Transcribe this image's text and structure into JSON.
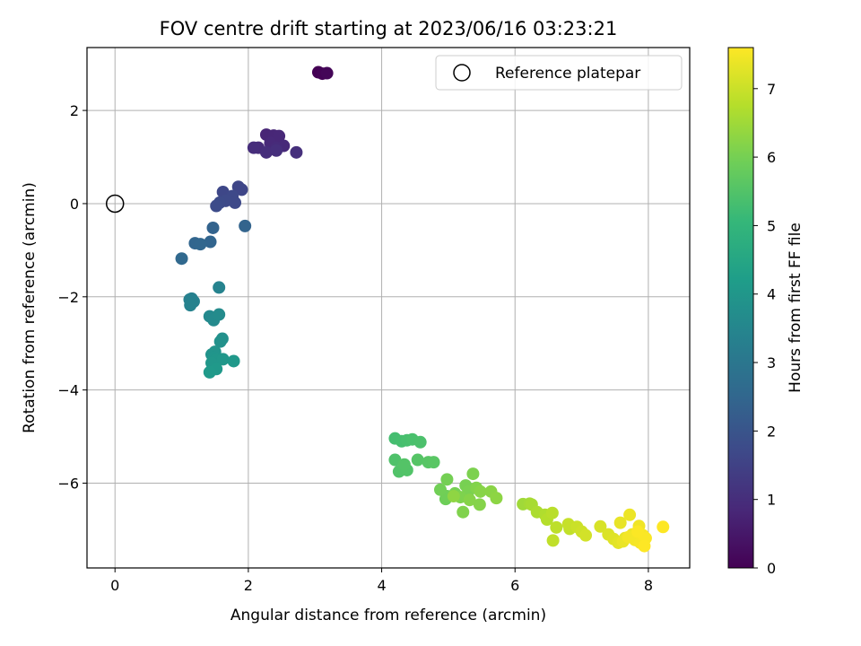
{
  "chart_data": {
    "type": "scatter",
    "title": "FOV centre drift starting at 2023/06/16 03:23:21",
    "xlabel": "Angular distance from reference (arcmin)",
    "ylabel": "Rotation from reference (arcmin)",
    "xlim": [
      -0.42,
      8.62
    ],
    "ylim": [
      -7.82,
      3.35
    ],
    "xticks": [
      0,
      2,
      4,
      6,
      8
    ],
    "yticks": [
      -6,
      -4,
      -2,
      0,
      2
    ],
    "grid": true,
    "legend": {
      "position": "upper-right",
      "entries": [
        "Reference platepar"
      ]
    },
    "reference_point": {
      "x": 0,
      "y": 0,
      "label": "Reference platepar"
    },
    "colorbar": {
      "label": "Hours from first FF file",
      "min": 0,
      "max": 7.6,
      "ticks": [
        0,
        1,
        2,
        3,
        4,
        5,
        6,
        7
      ],
      "colormap": "viridis"
    },
    "series": [
      {
        "x": [
          3.05,
          3.11,
          3.18,
          2.27,
          2.38,
          2.46,
          2.33,
          2.53,
          2.42,
          2.15,
          2.08,
          2.27,
          2.42,
          2.72,
          1.85,
          1.9,
          1.62,
          1.76,
          1.8,
          1.66,
          1.57,
          1.52,
          1.47,
          1.95,
          1.43,
          1.2,
          1.28,
          1.0,
          1.12,
          1.15,
          1.18,
          1.13,
          1.56,
          1.42,
          1.48,
          1.56,
          1.61,
          1.58,
          1.45,
          1.5,
          1.48,
          1.52,
          1.45,
          1.62,
          1.78,
          1.52,
          1.42,
          4.2,
          4.3,
          4.38,
          4.46,
          4.58,
          4.2,
          4.26,
          4.38,
          4.34,
          4.54,
          4.7,
          4.78,
          4.96,
          4.98,
          4.88,
          4.98,
          5.1,
          5.26,
          5.3,
          5.37,
          5.18,
          5.22,
          5.42,
          5.47,
          5.32,
          5.48,
          5.64,
          5.72,
          5.08,
          6.12,
          6.22,
          6.25,
          6.33,
          6.45,
          6.48,
          6.56,
          6.62,
          6.57,
          6.82,
          6.8,
          6.93,
          7.0,
          7.06,
          7.28,
          7.4,
          7.48,
          7.55,
          7.65,
          7.58,
          7.62,
          7.72,
          7.76,
          7.86,
          7.7,
          7.8,
          7.88,
          7.92,
          7.96,
          7.84,
          7.94,
          8.22
        ],
        "y": [
          2.82,
          2.79,
          2.8,
          1.48,
          1.46,
          1.45,
          1.3,
          1.24,
          1.2,
          1.2,
          1.2,
          1.1,
          1.14,
          1.1,
          0.36,
          0.3,
          0.25,
          0.16,
          0.02,
          0.06,
          0.02,
          -0.05,
          -0.52,
          -0.48,
          -0.82,
          -0.85,
          -0.87,
          -1.18,
          -2.06,
          -2.04,
          -2.1,
          -2.18,
          -1.8,
          -2.42,
          -2.5,
          -2.38,
          -2.9,
          -2.96,
          -3.24,
          -3.18,
          -3.3,
          -3.35,
          -3.42,
          -3.34,
          -3.38,
          -3.55,
          -3.62,
          -5.04,
          -5.1,
          -5.08,
          -5.06,
          -5.12,
          -5.5,
          -5.75,
          -5.72,
          -5.6,
          -5.5,
          -5.55,
          -5.55,
          -6.34,
          -6.28,
          -6.14,
          -5.92,
          -6.22,
          -6.05,
          -6.18,
          -5.8,
          -6.3,
          -6.62,
          -6.1,
          -6.46,
          -6.36,
          -6.18,
          -6.18,
          -6.32,
          -6.28,
          -6.45,
          -6.44,
          -6.46,
          -6.62,
          -6.68,
          -6.78,
          -6.64,
          -6.95,
          -7.23,
          -6.98,
          -6.88,
          -6.94,
          -7.04,
          -7.12,
          -6.93,
          -7.1,
          -7.2,
          -7.28,
          -7.18,
          -6.85,
          -7.25,
          -6.68,
          -7.1,
          -6.92,
          -7.16,
          -7.22,
          -7.28,
          -7.12,
          -7.18,
          -7.04,
          -7.35,
          -6.94
        ],
        "hours": [
          0.0,
          0.05,
          0.1,
          0.8,
          0.82,
          0.85,
          0.88,
          0.9,
          0.92,
          0.95,
          0.98,
          1.0,
          1.02,
          1.05,
          1.6,
          1.62,
          1.65,
          1.68,
          1.7,
          1.72,
          1.75,
          1.78,
          2.4,
          2.42,
          2.45,
          2.48,
          2.5,
          2.55,
          3.3,
          3.32,
          3.35,
          3.38,
          3.4,
          3.6,
          3.62,
          3.65,
          3.8,
          3.82,
          3.9,
          3.92,
          3.95,
          3.98,
          4.0,
          4.02,
          4.05,
          4.08,
          4.1,
          5.3,
          5.32,
          5.35,
          5.38,
          5.4,
          5.45,
          5.48,
          5.5,
          5.52,
          5.55,
          5.58,
          5.6,
          5.9,
          5.92,
          5.95,
          5.98,
          6.0,
          6.02,
          6.05,
          6.08,
          6.1,
          6.12,
          6.15,
          6.18,
          6.2,
          6.22,
          6.25,
          6.28,
          6.3,
          6.5,
          6.55,
          6.6,
          6.65,
          6.7,
          6.75,
          6.8,
          6.85,
          6.88,
          6.9,
          6.95,
          7.0,
          7.05,
          7.1,
          7.15,
          7.2,
          7.25,
          7.3,
          7.32,
          7.35,
          7.38,
          7.4,
          7.42,
          7.45,
          7.48,
          7.5,
          7.52,
          7.54,
          7.56,
          7.58,
          7.6,
          7.6
        ]
      }
    ]
  }
}
